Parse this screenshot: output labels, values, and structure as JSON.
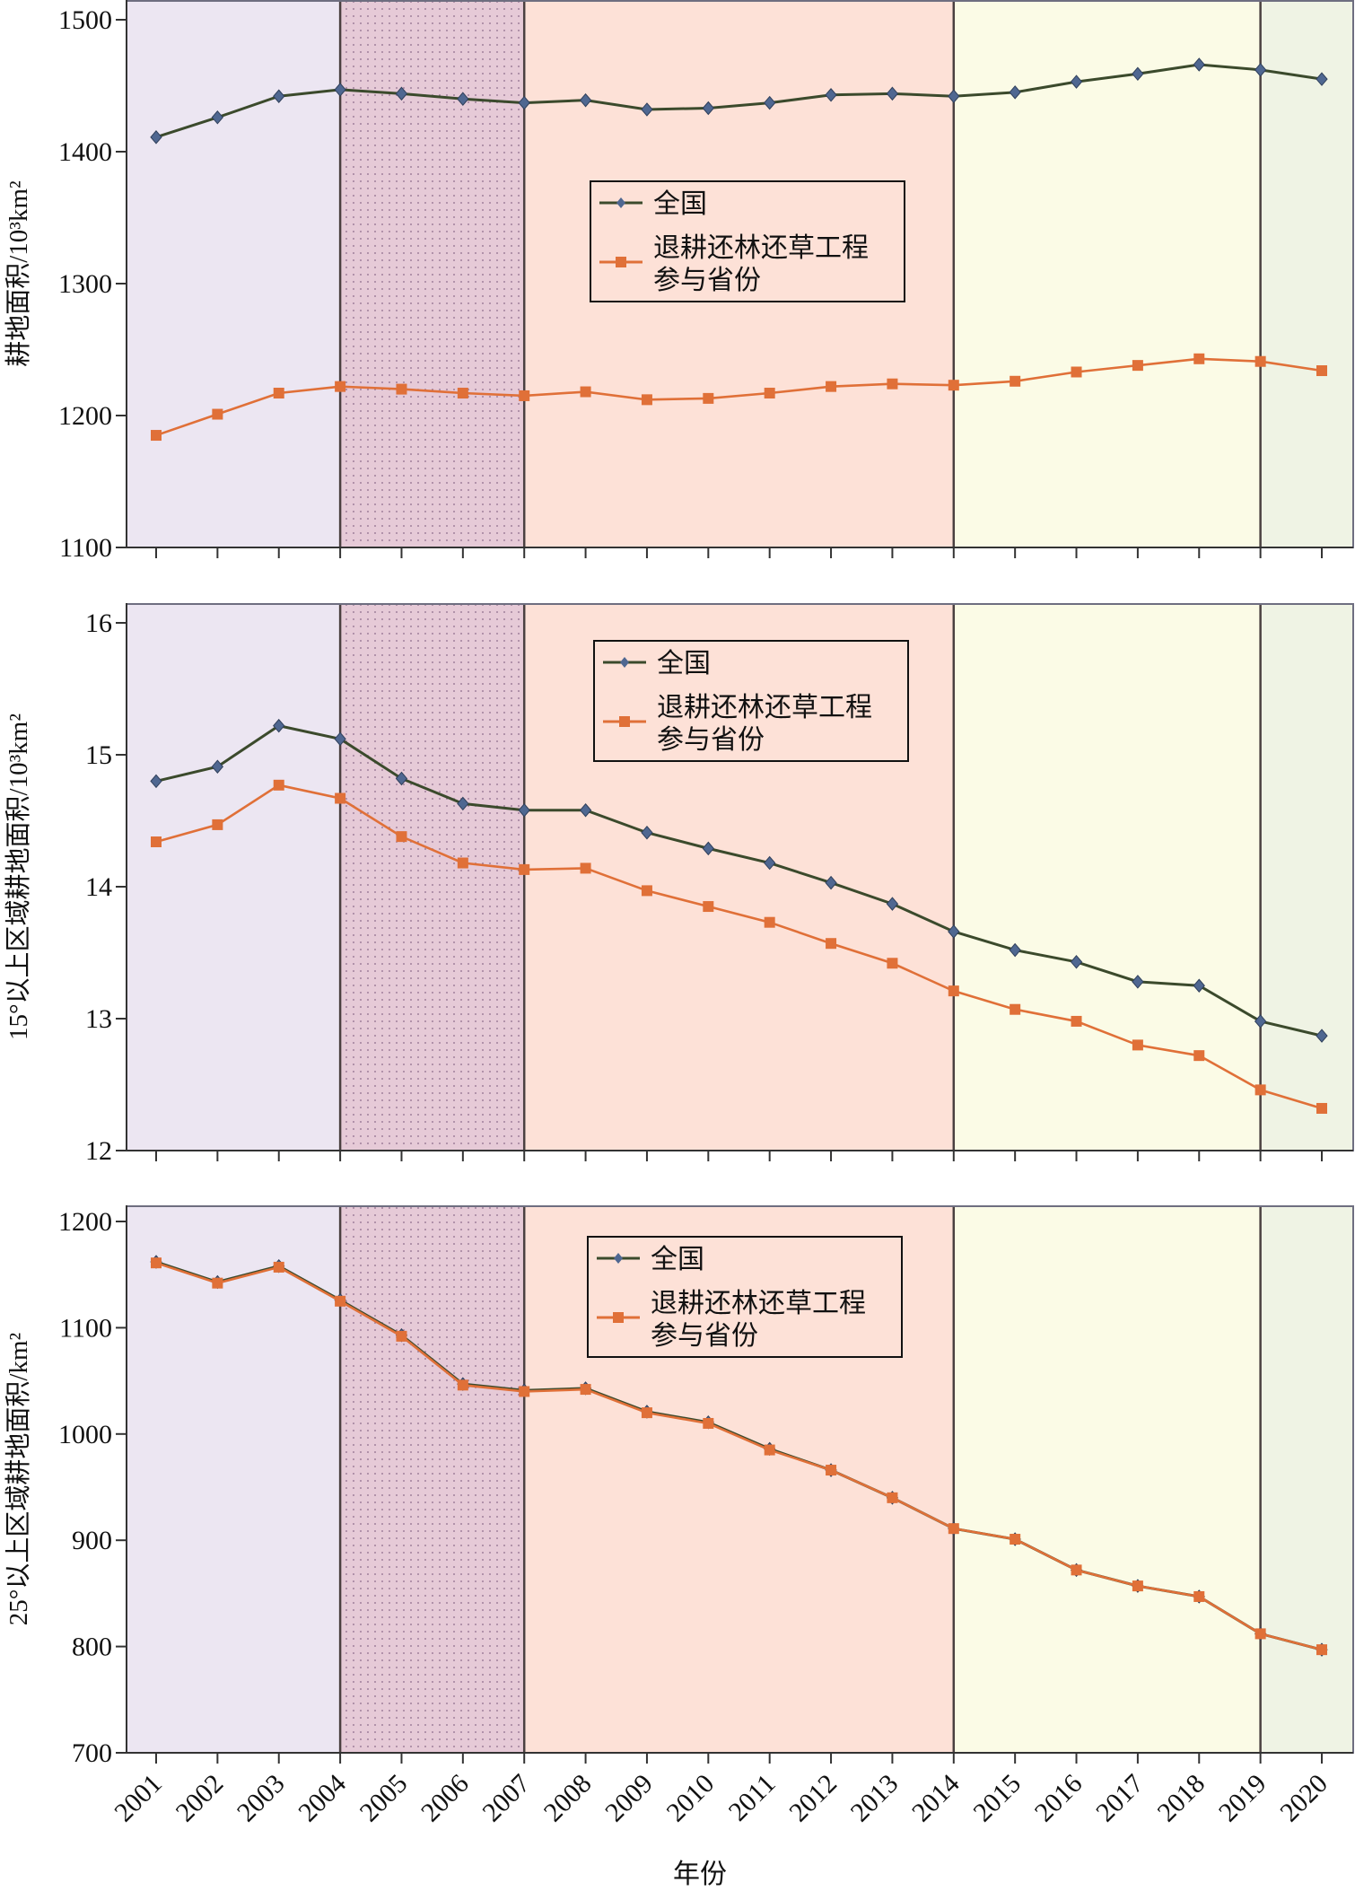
{
  "colors": {
    "national": "#3b4a2c",
    "national_marker": "#4f6791",
    "provinces": "#e07038",
    "period_1": "#ece6f2",
    "period_2": "#e6cad7",
    "period_3": "#fde1d7",
    "period_4": "#fbfbe6",
    "period_5": "#eff3e4"
  },
  "chart_data": [
    {
      "type": "line",
      "title": "",
      "xlabel": "年份",
      "ylabel": "耕地面积/10³km²",
      "ylim": [
        1100,
        1500
      ],
      "yticks": [
        1100,
        1200,
        1300,
        1400,
        1500
      ],
      "grid": false,
      "legend_position": "center",
      "x": [
        2001,
        2002,
        2003,
        2004,
        2005,
        2006,
        2007,
        2008,
        2009,
        2010,
        2011,
        2012,
        2013,
        2014,
        2015,
        2016,
        2017,
        2018,
        2019,
        2020
      ],
      "series": [
        {
          "name": "全国",
          "values": [
            1411,
            1426,
            1442,
            1447,
            1444,
            1440,
            1437,
            1439,
            1432,
            1433,
            1437,
            1443,
            1444,
            1442,
            1445,
            1453,
            1459,
            1466,
            1462,
            1455
          ]
        },
        {
          "name": "退耕还林还草工程参与省份",
          "legend_lines": [
            "退耕还林还草工程",
            "参与省份"
          ],
          "values": [
            1185,
            1201,
            1217,
            1222,
            1220,
            1217,
            1215,
            1218,
            1212,
            1213,
            1217,
            1222,
            1224,
            1223,
            1226,
            1233,
            1238,
            1243,
            1241,
            1234
          ]
        }
      ]
    },
    {
      "type": "line",
      "title": "",
      "xlabel": "年份",
      "ylabel": "15°以上区域耕地面积/10³km²",
      "ylim": [
        12,
        16
      ],
      "yticks": [
        12,
        13,
        14,
        15,
        16
      ],
      "grid": false,
      "legend_position": "top-center",
      "x": [
        2001,
        2002,
        2003,
        2004,
        2005,
        2006,
        2007,
        2008,
        2009,
        2010,
        2011,
        2012,
        2013,
        2014,
        2015,
        2016,
        2017,
        2018,
        2019,
        2020
      ],
      "series": [
        {
          "name": "全国",
          "values": [
            14.8,
            14.91,
            15.22,
            15.12,
            14.82,
            14.63,
            14.58,
            14.58,
            14.41,
            14.29,
            14.18,
            14.03,
            13.87,
            13.66,
            13.52,
            13.43,
            13.28,
            13.25,
            12.98,
            12.87
          ]
        },
        {
          "name": "退耕还林还草工程参与省份",
          "legend_lines": [
            "退耕还林还草工程",
            "参与省份"
          ],
          "values": [
            14.34,
            14.47,
            14.77,
            14.67,
            14.38,
            14.18,
            14.13,
            14.14,
            13.97,
            13.85,
            13.73,
            13.57,
            13.42,
            13.21,
            13.07,
            12.98,
            12.8,
            12.72,
            12.46,
            12.32
          ]
        }
      ]
    },
    {
      "type": "line",
      "title": "",
      "xlabel": "年份",
      "ylabel": "25°以上区域耕地面积/km²",
      "ylim": [
        700,
        1200
      ],
      "yticks": [
        700,
        800,
        900,
        1000,
        1100,
        1200
      ],
      "grid": false,
      "legend_position": "top-center",
      "x": [
        2001,
        2002,
        2003,
        2004,
        2005,
        2006,
        2007,
        2008,
        2009,
        2010,
        2011,
        2012,
        2013,
        2014,
        2015,
        2016,
        2017,
        2018,
        2019,
        2020
      ],
      "series": [
        {
          "name": "全国",
          "values": [
            1162,
            1143,
            1158,
            1126,
            1093,
            1047,
            1041,
            1043,
            1021,
            1011,
            986,
            966,
            940,
            911,
            901,
            872,
            857,
            847,
            812,
            797
          ]
        },
        {
          "name": "退耕还林还草工程参与省份",
          "legend_lines": [
            "退耕还林还草工程",
            "参与省份"
          ],
          "values": [
            1161,
            1142,
            1157,
            1125,
            1092,
            1046,
            1040,
            1042,
            1020,
            1010,
            985,
            966,
            940,
            911,
            901,
            872,
            857,
            847,
            812,
            797
          ]
        }
      ]
    }
  ],
  "periods": [
    {
      "from": 2000.5,
      "to": 2004,
      "color_key": "period_1",
      "dotted": false
    },
    {
      "from": 2004,
      "to": 2007,
      "color_key": "period_2",
      "dotted": true
    },
    {
      "from": 2007,
      "to": 2014,
      "color_key": "period_3",
      "dotted": false
    },
    {
      "from": 2014,
      "to": 2019,
      "color_key": "period_4",
      "dotted": false
    },
    {
      "from": 2019,
      "to": 2020.5,
      "color_key": "period_5",
      "dotted": false
    }
  ],
  "x_axis_title": "年份"
}
